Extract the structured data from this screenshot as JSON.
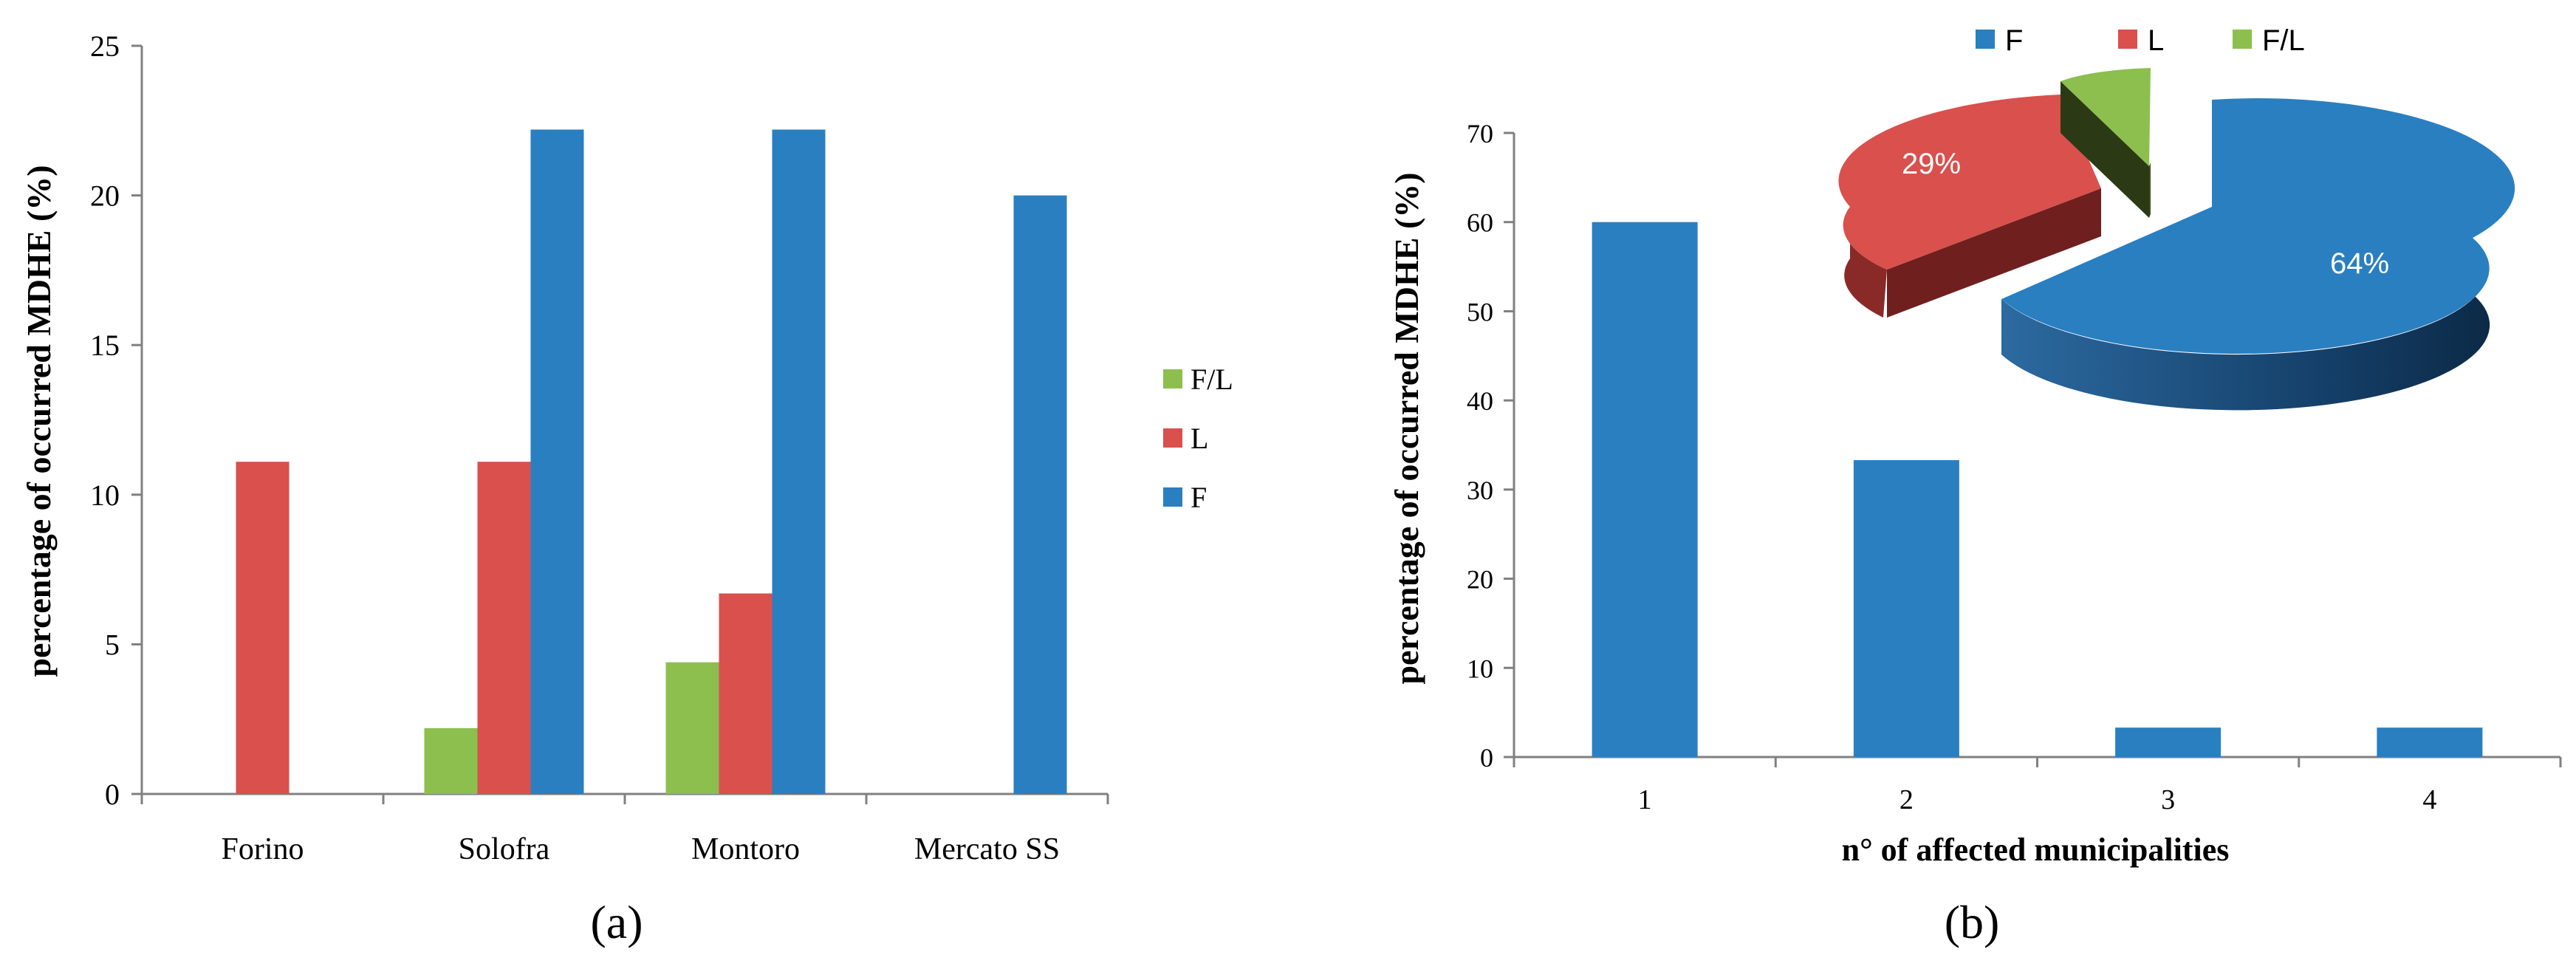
{
  "colors": {
    "F": "#2A7FC1",
    "L": "#D9504D",
    "FL": "#8CBF4E",
    "axis": "#808080",
    "text": "#000000"
  },
  "chart_data": [
    {
      "id": "a",
      "type": "bar",
      "panel_label": "(a)",
      "title": "",
      "xlabel": "",
      "ylabel": "percentage of occurred MDHE (%)",
      "ylim": [
        0,
        25
      ],
      "yticks": [
        0,
        5,
        10,
        15,
        20,
        25
      ],
      "categories": [
        "Forino",
        "Solofra",
        "Montoro",
        "Mercato SS"
      ],
      "series": [
        {
          "name": "F/L",
          "values": [
            0,
            2.2,
            4.4,
            0
          ]
        },
        {
          "name": "L",
          "values": [
            11.1,
            11.1,
            6.7,
            0
          ]
        },
        {
          "name": "F",
          "values": [
            0,
            22.2,
            22.2,
            20
          ]
        }
      ],
      "legend": [
        "F/L",
        "L",
        "F"
      ],
      "legend_position": "right",
      "grid": false
    },
    {
      "id": "b",
      "type": "bar",
      "panel_label": "(b)",
      "title": "",
      "xlabel": "n° of affected municipalities",
      "ylabel": "percentage of occurred MDHE (%)",
      "ylim": [
        0,
        70
      ],
      "yticks": [
        0,
        10,
        20,
        30,
        40,
        50,
        60,
        70
      ],
      "categories": [
        "1",
        "2",
        "3",
        "4"
      ],
      "series": [
        {
          "name": "MDHE",
          "values": [
            60,
            33.3,
            3.3,
            3.3
          ]
        }
      ],
      "grid": false
    },
    {
      "id": "b-inset",
      "type": "pie",
      "title": "",
      "labels": [
        "F",
        "L",
        "F/L"
      ],
      "values": [
        64,
        29,
        7
      ],
      "data_labels": [
        "64%",
        "29%",
        ""
      ],
      "legend": [
        "F",
        "L",
        "F/L"
      ],
      "legend_position": "top"
    }
  ]
}
